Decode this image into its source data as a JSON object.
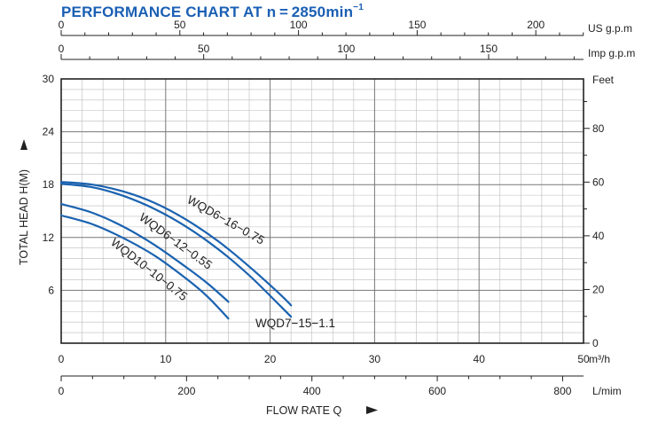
{
  "chart_data": {
    "type": "line",
    "title_main": "PERFORMANCE CHART AT n = 2850min",
    "title_sup": "−1",
    "bottom_axes": [
      {
        "ticks": [
          "0",
          "10",
          "20",
          "30",
          "40",
          "50"
        ],
        "unit": "m³/h",
        "range": [
          0,
          50
        ]
      },
      {
        "ticks": [
          "0",
          "200",
          "400",
          "600",
          "800"
        ],
        "unit": "L/mim",
        "range": [
          0,
          833.33
        ]
      }
    ],
    "top_axes": [
      {
        "ticks": [
          "0",
          "50",
          "100",
          "150",
          "200"
        ],
        "unit": "US g.p.m",
        "range": [
          0,
          220.1
        ]
      },
      {
        "ticks": [
          "0",
          "50",
          "100",
          "150"
        ],
        "unit": "Imp g.p.m",
        "range": [
          0,
          183.3
        ]
      }
    ],
    "left_axis": {
      "ticks": [
        "6",
        "12",
        "18",
        "24",
        "30"
      ],
      "label": "TOTAL HEAD  H(M)",
      "range": [
        0,
        30
      ]
    },
    "right_axis": {
      "ticks": [
        "0",
        "20",
        "40",
        "60",
        "80"
      ],
      "unit": "Feet",
      "range": [
        0,
        98.43
      ]
    },
    "xlabel": "FLOW RATE  Q",
    "xlim": [
      0,
      50
    ],
    "ylim": [
      0,
      30
    ],
    "grid": true,
    "series": [
      {
        "name": "WQD6-16-0.75",
        "x": [
          0,
          3,
          6,
          9,
          12,
          15,
          18,
          21,
          22
        ],
        "y": [
          18.3,
          18.0,
          17.2,
          15.9,
          14.0,
          11.6,
          8.7,
          5.5,
          4.3
        ]
      },
      {
        "name": "WQD7-15-1.1",
        "x": [
          0,
          3,
          6,
          9,
          12,
          15,
          18,
          21,
          22
        ],
        "y": [
          18.1,
          17.7,
          16.7,
          15.2,
          13.2,
          10.7,
          7.7,
          4.2,
          3.0
        ]
      },
      {
        "name": "WQD6-12-0.55",
        "x": [
          0,
          3,
          6,
          9,
          12,
          14,
          16
        ],
        "y": [
          15.8,
          14.8,
          13.2,
          11.1,
          8.6,
          6.8,
          4.7
        ]
      },
      {
        "name": "WQD10-10-0.75",
        "x": [
          0,
          3,
          6,
          9,
          12,
          14,
          16
        ],
        "y": [
          14.5,
          13.5,
          11.9,
          9.9,
          7.3,
          5.3,
          2.8
        ]
      }
    ],
    "curve_color": "#1a62b0",
    "grid_color_major": "#777777",
    "grid_color_minor": "#bbbbbb"
  }
}
